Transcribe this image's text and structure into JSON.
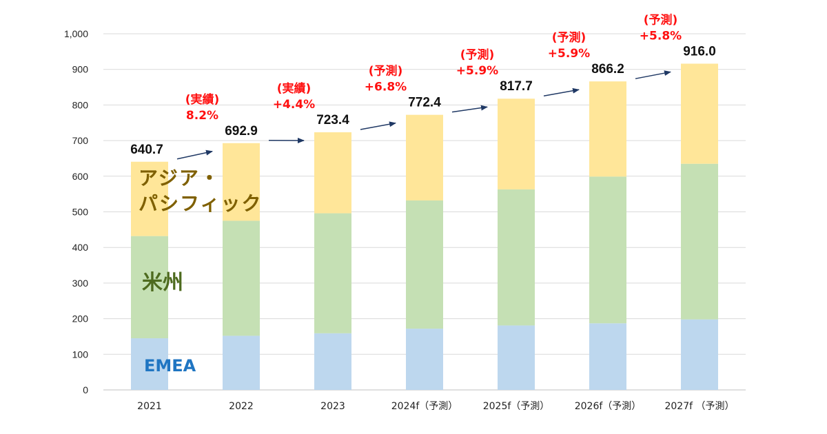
{
  "chart_data": {
    "type": "bar",
    "stacked": true,
    "categories": [
      "2021",
      "2022",
      "2023",
      "2024f（予測）",
      "2025f（予測）",
      "2026f（予測）",
      "2027f （予測）"
    ],
    "series": [
      {
        "name": "EMEA",
        "values": [
          145,
          152,
          159,
          172,
          181,
          187,
          198
        ],
        "color": "#bdd7ee",
        "label_color": "#1f75c2"
      },
      {
        "name": "米州",
        "values": [
          287,
          323,
          337,
          360,
          382,
          412,
          437
        ],
        "color": "#c5e0b4",
        "label_color": "#4e6b1f"
      },
      {
        "name": "アジア・\nパシフィック",
        "values": [
          208.7,
          217.9,
          227.4,
          240.4,
          254.7,
          267.2,
          281.0
        ],
        "color": "#ffe699",
        "label_color": "#7f6000"
      }
    ],
    "totals": [
      "640.7",
      "692.9",
      "723.4",
      "772.4",
      "817.7",
      "866.2",
      "916.0"
    ],
    "growth_labels": [
      {
        "status": "(実績)",
        "rate": "8.2%"
      },
      {
        "status": "(実績)",
        "rate": "+4.4%"
      },
      {
        "status": "(予測)",
        "rate": "+6.8%"
      },
      {
        "status": "(予測)",
        "rate": "+5.9%"
      },
      {
        "status": "(予測)",
        "rate": "+5.9%"
      },
      {
        "status": "(予測)",
        "rate": "+5.8%"
      }
    ],
    "ylim": [
      0,
      1000
    ],
    "yticks": [
      "0",
      "100",
      "200",
      "300",
      "400",
      "500",
      "600",
      "700",
      "800",
      "900",
      "1,000"
    ],
    "grid": true,
    "arrow_color": "#1f3864",
    "growth_color": "#ff1010"
  }
}
